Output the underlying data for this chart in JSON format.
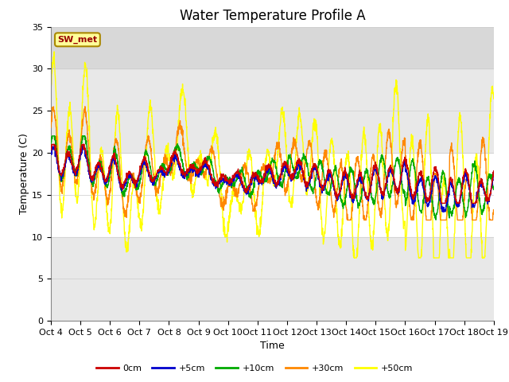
{
  "title": "Water Temperature Profile A",
  "xlabel": "Time",
  "ylabel": "Temperature (C)",
  "ylim": [
    0,
    35
  ],
  "yticks": [
    0,
    5,
    10,
    15,
    20,
    25,
    30,
    35
  ],
  "n_days": 15,
  "x_tick_labels": [
    "Oct 4",
    "Oct 5",
    "Oct 6",
    "Oct 7",
    "Oct 8",
    "Oct 9",
    "Oct 10",
    "Oct 11",
    "Oct 12",
    "Oct 13",
    "Oct 14",
    "Oct 15",
    "Oct 16",
    "Oct 17",
    "Oct 18",
    "Oct 19"
  ],
  "legend_labels": [
    "0cm",
    "+5cm",
    "+10cm",
    "+30cm",
    "+50cm"
  ],
  "legend_colors": [
    "#cc0000",
    "#0000cc",
    "#00aa00",
    "#ff8800",
    "#ffff00"
  ],
  "sw_met_box_color": "#ffff99",
  "sw_met_text_color": "#990000",
  "sw_met_border_color": "#aa8800",
  "background_color": "#ffffff",
  "band_color_light": "#e8e8e8",
  "band_color_mid": "#d8d8d8",
  "title_fontsize": 12,
  "axis_label_fontsize": 9,
  "tick_fontsize": 8
}
